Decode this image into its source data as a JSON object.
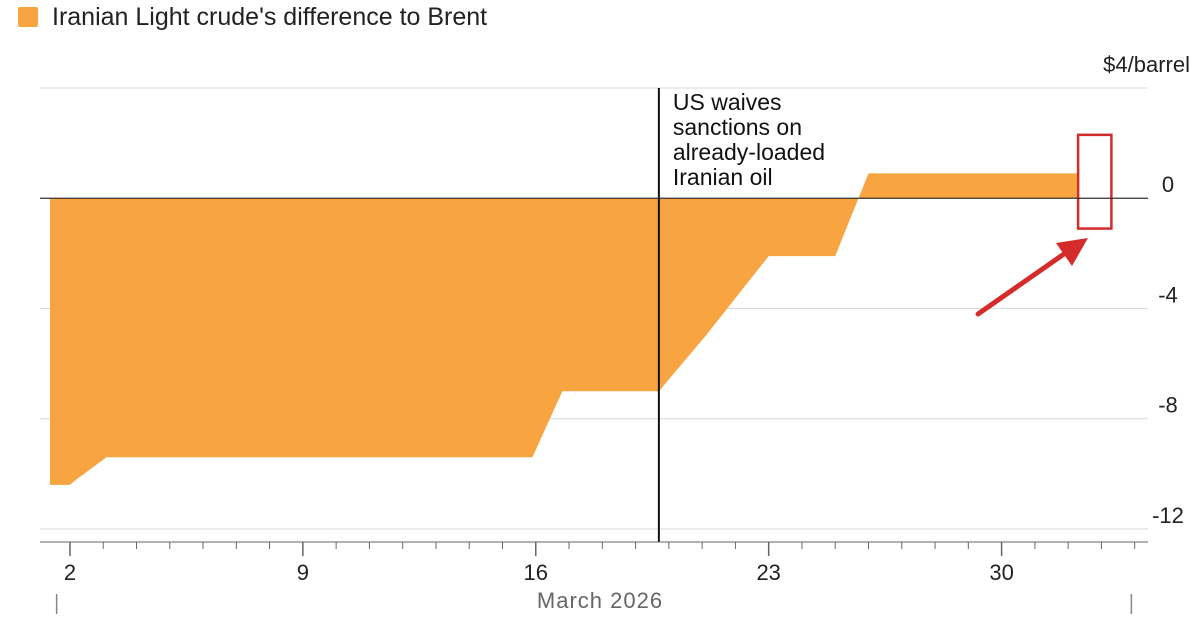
{
  "legend": {
    "label": "Iranian Light crude's difference to Brent",
    "color": "#f8a441"
  },
  "chart_data": {
    "type": "area",
    "series": [
      {
        "name": "Iranian Light crude's difference to Brent",
        "color": "#f8a441",
        "x": [
          1.4,
          2.0,
          2.2,
          3.1,
          3.4,
          15.9,
          16.8,
          19.7,
          21.1,
          23.0,
          23.5,
          25.0,
          25.4,
          26.0,
          32.3
        ],
        "y": [
          -10.4,
          -10.4,
          -10.2,
          -9.4,
          -9.4,
          -9.4,
          -7.0,
          -7.0,
          -5.0,
          -2.1,
          -2.1,
          -2.1,
          -0.9,
          0.9,
          0.9
        ]
      }
    ],
    "unit_label": "$4/barrel",
    "y_ticks": [
      0,
      -4,
      -8,
      -12
    ],
    "y_top_gridline": 4,
    "ylim": [
      -12.4,
      4
    ],
    "xlim": [
      1.1,
      34.4
    ],
    "x_ticks": [
      2,
      9,
      16,
      23,
      30
    ],
    "x_tick_labels": [
      "2",
      "9",
      "16",
      "23",
      "30"
    ],
    "xlabel": "March 2026",
    "annotation": {
      "x": 19.7,
      "lines": [
        "US waives",
        "sanctions on",
        "already-loaded",
        "Iranian oil"
      ]
    },
    "highlight": {
      "x_range": [
        32.3,
        33.3
      ],
      "y_range": [
        -1.1,
        2.3
      ],
      "color": "#d42b2b"
    },
    "grid": true
  }
}
